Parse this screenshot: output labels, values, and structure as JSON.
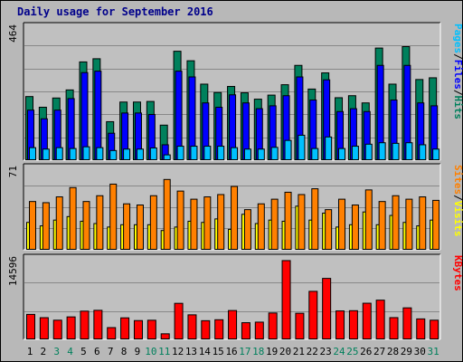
{
  "title": "Daily usage for September 2016",
  "colors": {
    "hits": "#00805c",
    "files": "#0000ff",
    "pages": "#00c0ff",
    "visits": "#ffff00",
    "sites": "#ff8000",
    "kbytes": "#ff0000",
    "weekend_day_label": "#00805c",
    "weekday_label": "#000000",
    "panel_bg": "#c0c0c0"
  },
  "chart_data": [
    {
      "type": "bar",
      "categories": [
        "1",
        "2",
        "3",
        "4",
        "5",
        "6",
        "7",
        "8",
        "9",
        "10",
        "11",
        "12",
        "13",
        "14",
        "15",
        "16",
        "17",
        "18",
        "19",
        "20",
        "21",
        "22",
        "23",
        "24",
        "25",
        "26",
        "27",
        "28",
        "29",
        "30",
        "31"
      ],
      "weekend_days": [
        "3",
        "4",
        "10",
        "11",
        "17",
        "18",
        "24",
        "25",
        "31"
      ],
      "ymax_label": "464",
      "ylim": [
        0,
        464
      ],
      "legend": [
        "Pages",
        "/",
        "Files",
        "/",
        "Hits"
      ],
      "series": [
        {
          "name": "Hits",
          "values": [
            222,
            185,
            217,
            245,
            342,
            353,
            135,
            203,
            203,
            205,
            123,
            379,
            346,
            265,
            236,
            257,
            235,
            213,
            227,
            263,
            330,
            248,
            304,
            218,
            225,
            200,
            390,
            265,
            395,
            281,
            287
          ]
        },
        {
          "name": "Files",
          "values": [
            175,
            145,
            175,
            215,
            305,
            310,
            95,
            165,
            165,
            160,
            55,
            310,
            290,
            200,
            185,
            228,
            200,
            180,
            190,
            225,
            290,
            210,
            280,
            170,
            180,
            170,
            330,
            210,
            330,
            200,
            190
          ]
        },
        {
          "name": "Pages",
          "values": [
            45,
            40,
            45,
            42,
            48,
            45,
            35,
            40,
            40,
            44,
            20,
            50,
            50,
            50,
            50,
            45,
            40,
            40,
            46,
            70,
            88,
            42,
            82,
            42,
            50,
            57,
            62,
            60,
            62,
            55,
            40
          ]
        }
      ]
    },
    {
      "type": "bar",
      "categories": [
        "1",
        "2",
        "3",
        "4",
        "5",
        "6",
        "7",
        "8",
        "9",
        "10",
        "11",
        "12",
        "13",
        "14",
        "15",
        "16",
        "17",
        "18",
        "19",
        "20",
        "21",
        "22",
        "23",
        "24",
        "25",
        "26",
        "27",
        "28",
        "29",
        "30",
        "31"
      ],
      "ymax_label": "71",
      "ylim": [
        0,
        71
      ],
      "legend": [
        "Sites",
        "/",
        "Visits"
      ],
      "series": [
        {
          "name": "Sites",
          "values": [
            42,
            41,
            46,
            54,
            42,
            47,
            57,
            40,
            39,
            47,
            61,
            51,
            44,
            46,
            48,
            55,
            35,
            40,
            44,
            50,
            48,
            53,
            35,
            44,
            39,
            52,
            42,
            47,
            44,
            46,
            43
          ]
        },
        {
          "name": "Visits",
          "values": [
            24,
            21,
            26,
            29,
            25,
            23,
            20,
            22,
            22,
            22,
            17,
            20,
            25,
            24,
            27,
            18,
            31,
            23,
            26,
            25,
            38,
            26,
            32,
            20,
            22,
            33,
            22,
            30,
            24,
            21,
            26
          ]
        }
      ]
    },
    {
      "type": "bar",
      "categories": [
        "1",
        "2",
        "3",
        "4",
        "5",
        "6",
        "7",
        "8",
        "9",
        "10",
        "11",
        "12",
        "13",
        "14",
        "15",
        "16",
        "17",
        "18",
        "19",
        "20",
        "21",
        "22",
        "23",
        "24",
        "25",
        "26",
        "27",
        "28",
        "29",
        "30",
        "31"
      ],
      "ymax_label": "14596",
      "ylim": [
        0,
        14596
      ],
      "legend": [
        "KBytes"
      ],
      "series": [
        {
          "name": "KBytes",
          "values": [
            4560,
            3970,
            3520,
            4110,
            5140,
            5290,
            2190,
            3940,
            3450,
            3510,
            1080,
            6540,
            4480,
            3430,
            3600,
            5250,
            3070,
            3170,
            4810,
            14200,
            4760,
            8690,
            11010,
            5180,
            5220,
            6560,
            7110,
            3980,
            5730,
            3750,
            3520
          ]
        }
      ]
    }
  ]
}
